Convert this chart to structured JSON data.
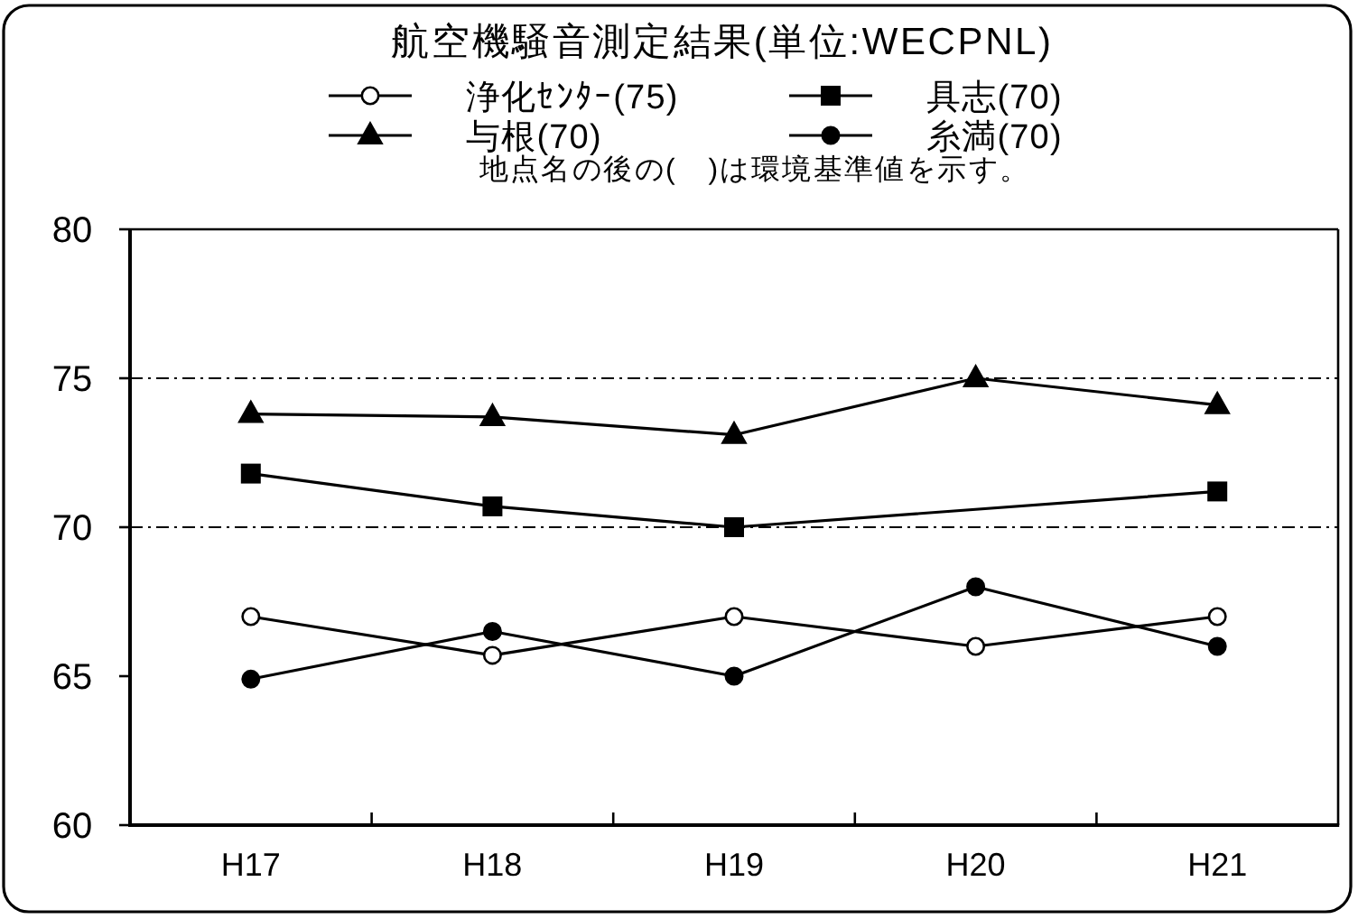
{
  "chart_data": {
    "type": "line",
    "title": "航空機騒音測定結果(単位:WECPNL)",
    "annotations": [
      "地点名の後の(　)は環境基準値を示す。"
    ],
    "categories": [
      "H17",
      "H18",
      "H19",
      "H20",
      "H21"
    ],
    "series": [
      {
        "name": "浄化ｾﾝﾀｰ(75)",
        "color": "#000000",
        "marker": "circle-open",
        "values": [
          67,
          65.7,
          67,
          66,
          67
        ]
      },
      {
        "name": "具志(70)",
        "color": "#000000",
        "marker": "square",
        "values": [
          71.8,
          70.7,
          70,
          null,
          71.2
        ]
      },
      {
        "name": "与根(70)",
        "color": "#000000",
        "marker": "triangle",
        "values": [
          73.8,
          73.7,
          73.1,
          75,
          74.1
        ]
      },
      {
        "name": "糸満(70)",
        "color": "#000000",
        "marker": "circle",
        "values": [
          64.9,
          66.5,
          65,
          68,
          66
        ]
      }
    ],
    "ylim": [
      60,
      80
    ],
    "yticks": [
      60,
      65,
      70,
      75,
      80
    ],
    "grid": false,
    "legend": "top",
    "line_style": "solid",
    "ref_lines": [
      {
        "axis": "y",
        "value": 75,
        "color": "#000000",
        "line_style": "dashdot"
      },
      {
        "axis": "y",
        "value": 70,
        "color": "#000000",
        "line_style": "dashdot"
      }
    ]
  }
}
